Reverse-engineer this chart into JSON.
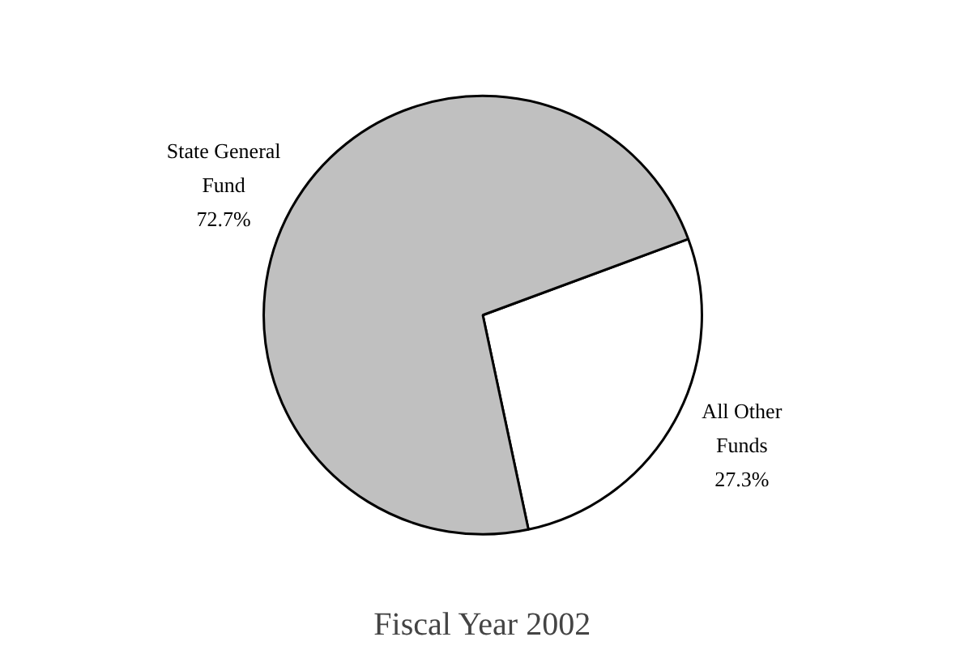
{
  "chart_data": {
    "type": "pie",
    "title": "Fiscal Year 2002",
    "categories": [
      "State General Fund",
      "All Other Funds"
    ],
    "values": [
      72.7,
      27.3
    ],
    "value_labels": [
      "72.7%",
      "27.3%"
    ],
    "colors": [
      "#c0c0c0",
      "#ffffff"
    ]
  }
}
